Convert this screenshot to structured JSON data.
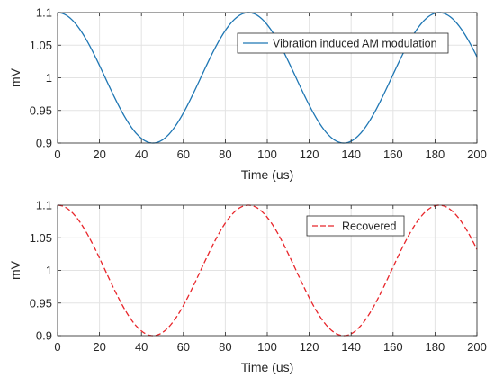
{
  "chart_data": [
    {
      "type": "line",
      "xlabel": "Time (us)",
      "ylabel": "mV",
      "xlim": [
        0,
        200
      ],
      "ylim": [
        0.9,
        1.1
      ],
      "xticks": [
        "0",
        "20",
        "40",
        "60",
        "80",
        "100",
        "120",
        "140",
        "160",
        "180",
        "200"
      ],
      "yticks": [
        "0.9",
        "0.95",
        "1",
        "1.05",
        "1.1"
      ],
      "grid": true,
      "legend_position": "top-right",
      "series": [
        {
          "name": "Vibration induced AM modulation",
          "color": "#1f77b4",
          "style": "solid",
          "x": [
            0,
            11.4,
            22.8,
            34.1,
            45.5,
            56.9,
            68.3,
            79.6,
            91,
            102.4,
            113.8,
            125.1,
            136.5,
            147.9,
            159.3,
            170.6,
            182,
            193.4,
            200
          ],
          "values": [
            1.1,
            1.0707,
            1.0,
            0.9293,
            0.9,
            0.9293,
            1.0,
            1.0707,
            1.1,
            1.0707,
            1.0,
            0.9293,
            0.9,
            0.9293,
            1.0,
            1.0707,
            1.1,
            1.0707,
            1.0356
          ]
        }
      ]
    },
    {
      "type": "line",
      "xlabel": "Time (us)",
      "ylabel": "mV",
      "xlim": [
        0,
        200
      ],
      "ylim": [
        0.9,
        1.1
      ],
      "xticks": [
        "0",
        "20",
        "40",
        "60",
        "80",
        "100",
        "120",
        "140",
        "160",
        "180",
        "200"
      ],
      "yticks": [
        "0.9",
        "0.95",
        "1",
        "1.05",
        "1.1"
      ],
      "grid": true,
      "legend_position": "top-right",
      "series": [
        {
          "name": "Recovered",
          "color": "#e8262b",
          "style": "dashed",
          "x": [
            0,
            11.4,
            22.8,
            34.1,
            45.5,
            56.9,
            68.3,
            79.6,
            91,
            102.4,
            113.8,
            125.1,
            136.5,
            147.9,
            159.3,
            170.6,
            182,
            193.4,
            200
          ],
          "values": [
            1.1,
            1.0707,
            1.0,
            0.9293,
            0.9,
            0.9293,
            1.0,
            1.0707,
            1.1,
            1.0707,
            1.0,
            0.9293,
            0.9,
            0.9293,
            1.0,
            1.0707,
            1.1,
            1.0707,
            1.0356
          ]
        }
      ]
    }
  ]
}
